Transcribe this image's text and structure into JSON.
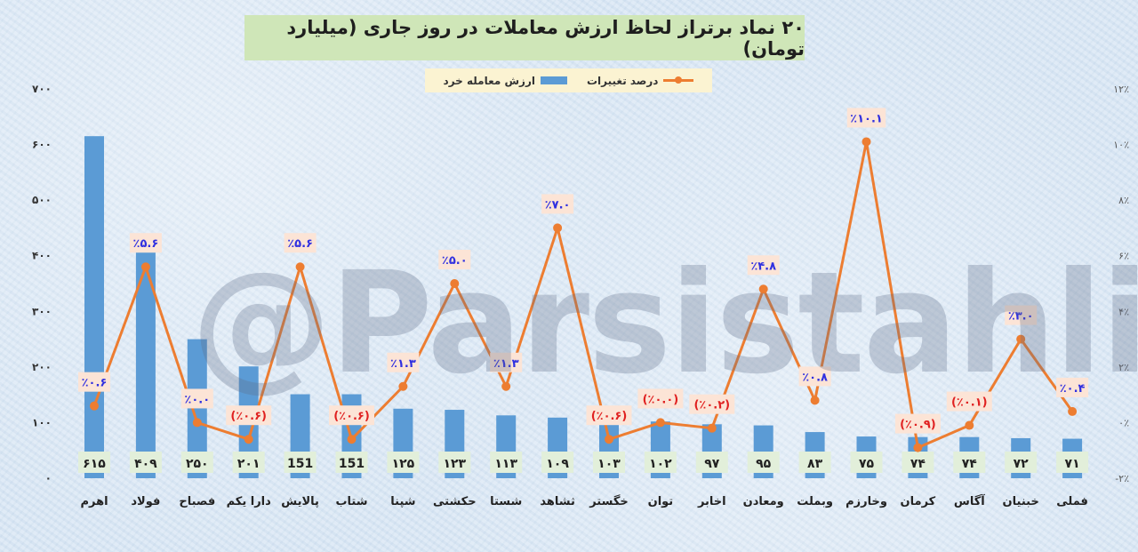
{
  "title": "۲۰ نماد برتراز لحاظ ارزش معاملات در روز جاری (میلیارد تومان)",
  "legend": {
    "bar_label": "ارزش معامله خرد",
    "line_label": "درصد تغییرات"
  },
  "watermark": "@Parsistahlil",
  "colors": {
    "bar": "#5b9bd5",
    "line": "#ed7d31",
    "title_bg": "#cfe6b8",
    "legend_bg": "#fbf3d2",
    "value_box": "#e2efda",
    "label_box": "#fce4d6",
    "positive_label": "#3030e0",
    "negative_label": "#e02020"
  },
  "chart_data": {
    "type": "bar+line",
    "categories": [
      "اهرم",
      "فولاد",
      "فصباح",
      "دارا یکم",
      "پالایش",
      "شتاب",
      "شپنا",
      "حکشتی",
      "شستا",
      "ثشاهد",
      "خگستر",
      "توان",
      "اخابر",
      "ومعادن",
      "وبملت",
      "وخارزم",
      "کرمان",
      "آگاس",
      "خبنیان",
      "فملی"
    ],
    "bar_series": {
      "name": "ارزش معامله خرد",
      "values": [
        615,
        409,
        250,
        201,
        151,
        151,
        125,
        123,
        113,
        109,
        103,
        102,
        97,
        95,
        83,
        75,
        74,
        74,
        72,
        71
      ],
      "value_labels": [
        "۶۱۵",
        "۴۰۹",
        "۲۵۰",
        "۲۰۱",
        "151",
        "151",
        "۱۲۵",
        "۱۲۳",
        "۱۱۳",
        "۱۰۹",
        "۱۰۳",
        "۱۰۲",
        "۹۷",
        "۹۵",
        "۸۳",
        "۷۵",
        "۷۴",
        "۷۴",
        "۷۲",
        "۷۱"
      ]
    },
    "line_series": {
      "name": "درصد تغییرات",
      "values": [
        0.6,
        5.6,
        0.0,
        -0.6,
        5.6,
        -0.6,
        1.3,
        5.0,
        1.3,
        7.0,
        -0.6,
        0.0,
        -0.2,
        4.8,
        0.8,
        10.1,
        -0.9,
        -0.1,
        3.0,
        0.4
      ],
      "value_labels": [
        "٪۰.۶",
        "٪۵.۶",
        "٪۰.۰",
        "(٪۰.۶)",
        "٪۵.۶",
        "(٪۰.۶)",
        "٪۱.۳",
        "٪۵.۰",
        "٪۱.۳",
        "٪۷.۰",
        "(٪۰.۶)",
        "(٪۰.۰)",
        "(٪۰.۲)",
        "٪۴.۸",
        "٪۰.۸",
        "٪۱۰.۱",
        "(٪۰.۹)",
        "(٪۰.۱)",
        "٪۳.۰",
        "٪۰.۴"
      ]
    },
    "y_left": {
      "lim": [
        0,
        700
      ],
      "ticks": [
        0,
        100,
        200,
        300,
        400,
        500,
        600,
        700
      ],
      "tick_labels": [
        "۰",
        "۱۰۰",
        "۲۰۰",
        "۳۰۰",
        "۴۰۰",
        "۵۰۰",
        "۶۰۰",
        "۷۰۰"
      ]
    },
    "y_right": {
      "lim": [
        -2,
        12
      ],
      "ticks": [
        -2,
        0,
        2,
        4,
        6,
        8,
        10,
        12
      ],
      "tick_labels": [
        "-۲٪",
        "۰٪",
        "۲٪",
        "۴٪",
        "۶٪",
        "۸٪",
        "۱۰٪",
        "۱۲٪"
      ]
    },
    "grid": false,
    "legend_position": "top"
  }
}
